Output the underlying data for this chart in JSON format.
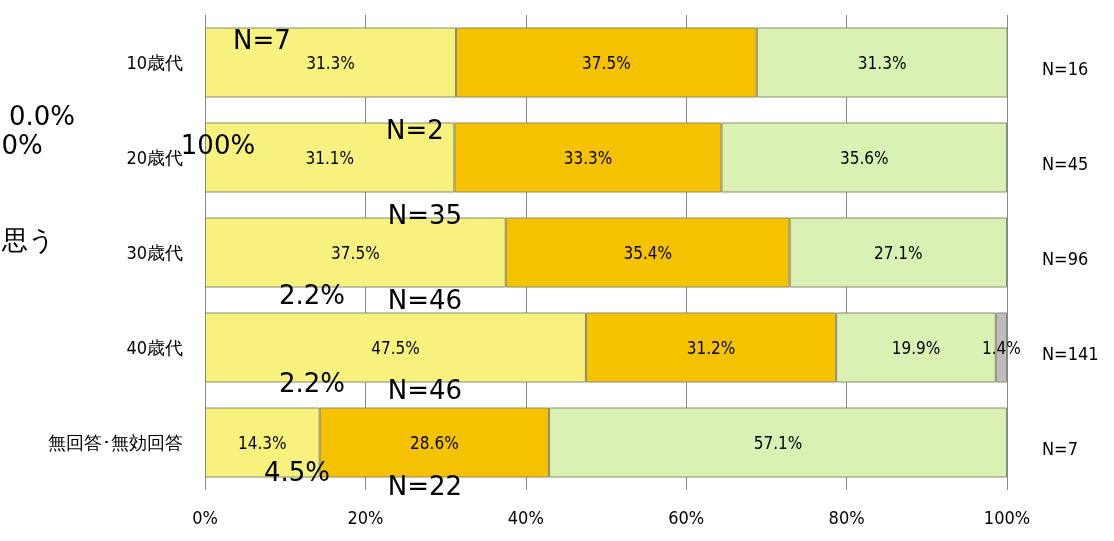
{
  "chart_data": {
    "type": "bar",
    "orientation": "horizontal",
    "stacked": true,
    "categories": [
      "10歳代",
      "20歳代",
      "30歳代",
      "40歳代",
      "無回答･無効回答"
    ],
    "series": [
      {
        "color": "#f7f27e",
        "values": [
          31.3,
          31.1,
          37.5,
          47.5,
          14.3
        ],
        "value_labels": [
          "31.3%",
          "31.1%",
          "37.5%",
          "47.5%",
          "14.3%"
        ]
      },
      {
        "color": "#f5c200",
        "values": [
          37.5,
          33.3,
          35.4,
          31.2,
          28.6
        ],
        "value_labels": [
          "37.5%",
          "33.3%",
          "35.4%",
          "31.2%",
          "28.6%"
        ]
      },
      {
        "color": "#d9f2b4",
        "values": [
          31.3,
          35.6,
          27.1,
          19.9,
          57.1
        ],
        "value_labels": [
          "31.3%",
          "35.6%",
          "27.1%",
          "19.9%",
          "57.1%"
        ]
      },
      {
        "color": "#bdbdbd",
        "values": [
          null,
          null,
          null,
          1.4,
          null
        ],
        "value_labels": [
          null,
          null,
          null,
          "1.4%",
          null
        ]
      }
    ],
    "xlim": [
      0,
      100
    ],
    "xticks": [
      {
        "value": 0,
        "label": "0%"
      },
      {
        "value": 20,
        "label": "20%"
      },
      {
        "value": 40,
        "label": "40%"
      },
      {
        "value": 60,
        "label": "60%"
      },
      {
        "value": 80,
        "label": "80%"
      },
      {
        "value": 100,
        "label": "100%"
      }
    ],
    "grid": "x",
    "annotations": [
      "N=16",
      "N=45",
      "N=96",
      "N=141",
      "N=7",
      "N=7",
      "100%",
      "N=2",
      "0.0%",
      "0%",
      "思う",
      "N=35",
      "2.2%",
      "N=46",
      "2.2%",
      "N=46",
      "4.5%",
      "N=22"
    ]
  }
}
